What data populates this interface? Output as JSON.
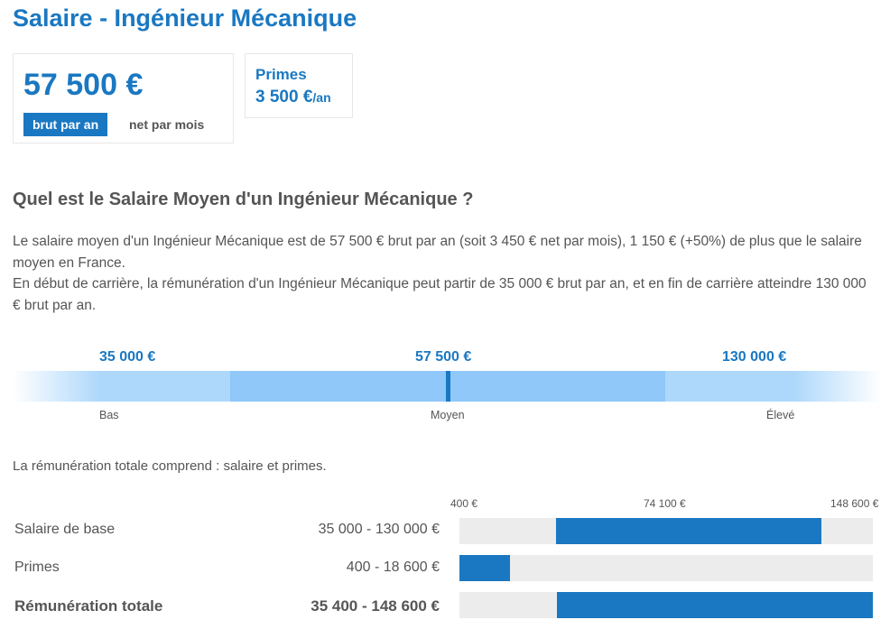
{
  "page": {
    "title": "Salaire - Ingénieur Mécanique"
  },
  "salary_card": {
    "amount": "57 500 €",
    "period_selected": "brut par an",
    "period_alt": "net par mois"
  },
  "bonus_card": {
    "label": "Primes",
    "value": "3 500 €",
    "unit": "/an"
  },
  "section": {
    "heading": "Quel est le Salaire Moyen d'un Ingénieur Mécanique ?",
    "paragraph1": "Le salaire moyen d'un Ingénieur Mécanique est de 57 500 € brut par an (soit 3 450 € net par mois), 1 150 € (+50%) de plus que le salaire moyen en France.",
    "paragraph2": "En début de carrière, la rémunération d'un Ingénieur Mécanique peut partir de 35 000 € brut par an, et en fin de carrière atteindre 130 000 € brut par an."
  },
  "salary_range": {
    "low": {
      "amount": "35 000 €",
      "label": "Bas"
    },
    "mid": {
      "amount": "57 500 €",
      "label": "Moyen"
    },
    "high": {
      "amount": "130 000 €",
      "label": "Élevé"
    },
    "colors": {
      "outer": "#aed8fb",
      "inner": "#8fc8f9",
      "marker": "#1a78c2"
    }
  },
  "breakdown": {
    "note": "La rémunération totale comprend : salaire et primes.",
    "scale": {
      "min_label": "400 €",
      "mid_label": "74 100 €",
      "max_label": "148 600 €",
      "min": 400,
      "max": 148600
    },
    "rows": [
      {
        "label": "Salaire de base",
        "range": "35 000 - 130 000 €",
        "low": 35000,
        "high": 130000
      },
      {
        "label": "Primes",
        "range": "400 - 18 600 €",
        "low": 400,
        "high": 18600
      },
      {
        "label": "Rémunération totale",
        "range": "35 400 - 148 600 €",
        "low": 35400,
        "high": 148600
      }
    ],
    "colors": {
      "bar": "#1a78c2",
      "track": "#ececec"
    }
  }
}
